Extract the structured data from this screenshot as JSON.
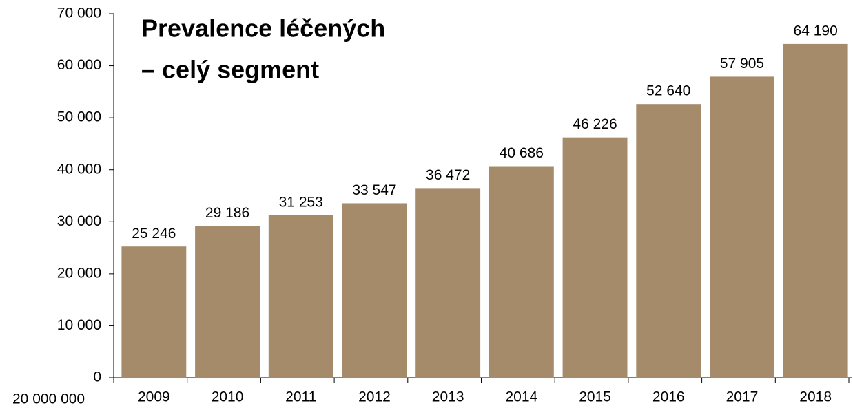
{
  "chart_data": {
    "type": "bar",
    "title_lines": [
      "Prevalence léčených",
      "– celý segment"
    ],
    "annotation": "20 000 000",
    "categories": [
      "2009",
      "2010",
      "2011",
      "2012",
      "2013",
      "2014",
      "2015",
      "2016",
      "2017",
      "2018"
    ],
    "values": [
      25246,
      29186,
      31253,
      33547,
      36472,
      40686,
      46226,
      52640,
      57905,
      64190
    ],
    "value_labels": [
      "25 246",
      "29 186",
      "31 253",
      "33 547",
      "36 472",
      "40 686",
      "46 226",
      "52 640",
      "57 905",
      "64 190"
    ],
    "color": "#a58b6a",
    "ylim": [
      0,
      70000
    ],
    "yticks": [
      0,
      {
        "value": 10000,
        "label": "10 000"
      },
      {
        "value": 20000,
        "label": "20 000"
      },
      {
        "value": 30000,
        "label": "30 000"
      },
      {
        "value": 40000,
        "label": "40 000"
      },
      {
        "value": 50000,
        "label": "50 000"
      },
      {
        "value": 60000,
        "label": "60 000"
      },
      {
        "value": 70000,
        "label": "70 000"
      }
    ]
  }
}
